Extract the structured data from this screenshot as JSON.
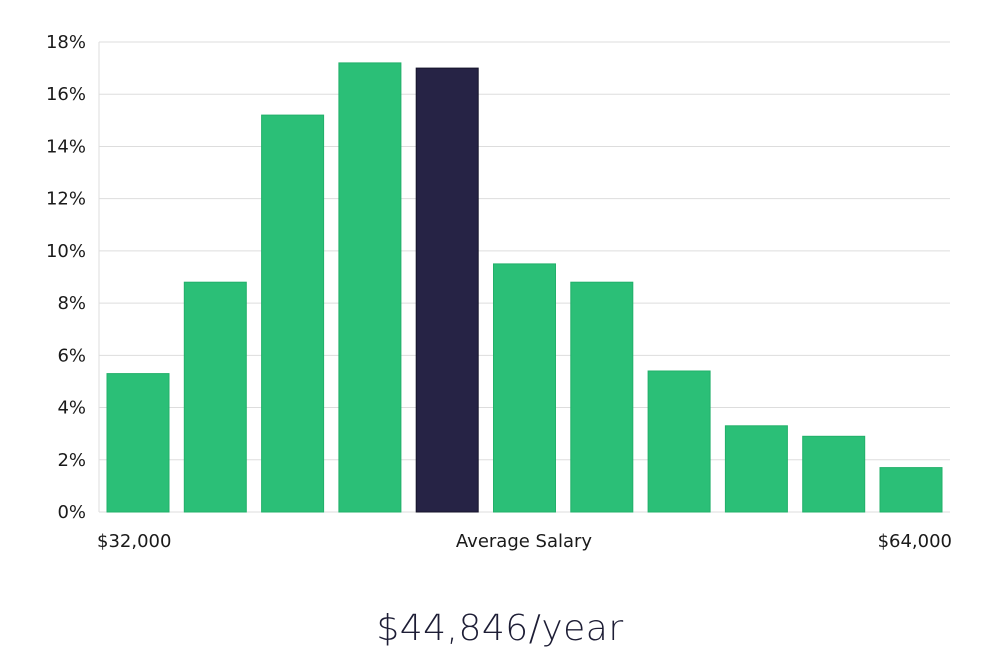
{
  "chart_data": {
    "type": "bar",
    "title": "",
    "xlabel": "Average Salary",
    "ylabel": "",
    "x_start_label": "$32,000",
    "x_end_label": "$64,000",
    "ylim": [
      0,
      18
    ],
    "y_ticks": [
      0,
      2,
      4,
      6,
      8,
      10,
      12,
      14,
      16,
      18
    ],
    "y_tick_suffix": "%",
    "grid": true,
    "values": [
      5.3,
      8.8,
      15.2,
      17.2,
      17.0,
      9.5,
      8.8,
      5.4,
      3.3,
      2.9,
      1.7
    ],
    "highlight_index": 4,
    "bar_color": "#2bbf77",
    "bar_edge_color": "#22b06a",
    "highlight_color": "#262345",
    "highlight_edge_color": "#15132a"
  },
  "summary": {
    "salary_text": "$44,846/year",
    "salary_color": "#1d1d35"
  }
}
